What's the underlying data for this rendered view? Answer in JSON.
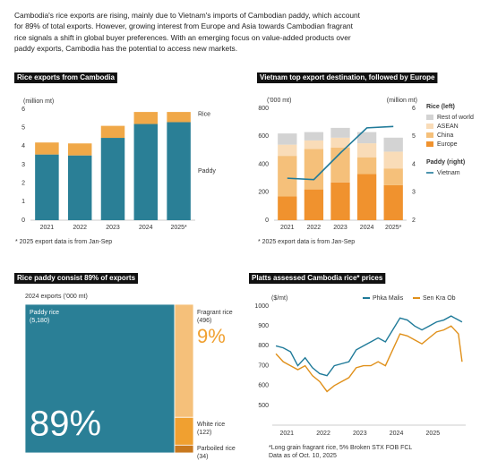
{
  "intro": "Cambodia's rice exports are rising, mainly due to Vietnam's imports of Cambodian paddy, which account for 89% of total exports. However, growing interest from Europe and Asia towards Cambodian fragrant rice signals a shift in global buyer preferences. With an emerging focus on value-added products over paddy exports, Cambodia has the potential to access new markets.",
  "chart_data": [
    {
      "type": "stacked_bar",
      "title": "Rice exports from Cambodia",
      "y_label": "(million mt)",
      "categories": [
        "2021",
        "2022",
        "2023",
        "2024",
        "2025*"
      ],
      "series": [
        {
          "name": "Paddy",
          "color": "#2a7f96",
          "values": [
            3.55,
            3.5,
            4.45,
            5.2,
            5.3
          ]
        },
        {
          "name": "Rice",
          "color": "#f0a848",
          "values": [
            0.65,
            0.65,
            0.65,
            0.65,
            0.55
          ]
        }
      ],
      "ylim": [
        0,
        6
      ],
      "yticks": [
        0,
        1,
        2,
        3,
        4,
        5,
        6
      ],
      "grid": false,
      "note": "* 2025 export data is from Jan-Sep"
    },
    {
      "type": "stacked_bar_line",
      "title": "Vietnam top export destination, followed by Europe",
      "y_label": "('000 mt)",
      "y2_label": "(million mt)",
      "categories": [
        "2021",
        "2022",
        "2023",
        "2024",
        "2025*"
      ],
      "legend_titles": [
        "Rice (left)",
        "Paddy (right)"
      ],
      "series": [
        {
          "name": "Europe",
          "color": "#f0922e",
          "values": [
            170,
            220,
            270,
            330,
            250
          ]
        },
        {
          "name": "China",
          "color": "#f5c07a",
          "values": [
            290,
            290,
            250,
            120,
            120
          ]
        },
        {
          "name": "ASEAN",
          "color": "#f9dcb8",
          "values": [
            80,
            60,
            70,
            100,
            120
          ]
        },
        {
          "name": "Rest of world",
          "color": "#d3d3d3",
          "values": [
            80,
            60,
            70,
            80,
            100
          ]
        },
        {
          "name": "Vietnam",
          "color": "#1f7a99",
          "axis": "y2",
          "values": [
            3.5,
            3.45,
            4.4,
            5.3,
            5.35
          ]
        }
      ],
      "ylim": [
        0,
        800
      ],
      "yticks": [
        0,
        200,
        400,
        600,
        800
      ],
      "y2lim": [
        2,
        6
      ],
      "y2ticks": [
        2,
        3,
        4,
        5,
        6
      ],
      "grid": false,
      "note": "* 2025 export data is from Jan-Sep"
    },
    {
      "type": "treemap",
      "title": "Rice paddy consist 89% of exports",
      "subtitle": "2024 exports ('000 mt)",
      "categories": [
        "Paddy rice",
        "Fragrant rice",
        "White rice",
        "Parboiled rice"
      ],
      "values": [
        5180,
        496,
        122,
        34
      ],
      "value_labels": [
        "(5,180)",
        "(496)",
        "(122)",
        "(34)"
      ],
      "colors": [
        "#2a7f96",
        "#f5c07a",
        "#f0a030",
        "#c8781e"
      ],
      "shares": [
        {
          "value": 89,
          "label": "89%"
        },
        {
          "value": 9,
          "label": "9%"
        }
      ]
    },
    {
      "type": "line",
      "title": "Platts assessed Cambodia rice* prices",
      "y_label": "($/mt)",
      "x": [
        2020.7,
        2020.9,
        2021.1,
        2021.3,
        2021.5,
        2021.7,
        2021.9,
        2022.1,
        2022.3,
        2022.5,
        2022.7,
        2022.9,
        2023.1,
        2023.3,
        2023.5,
        2023.7,
        2023.9,
        2024.1,
        2024.3,
        2024.5,
        2024.7,
        2024.9,
        2025.1,
        2025.3,
        2025.5,
        2025.7,
        2025.8
      ],
      "series": [
        {
          "name": "Phka Malis",
          "color": "#1f7a99",
          "values": [
            800,
            790,
            770,
            700,
            740,
            690,
            660,
            650,
            700,
            710,
            720,
            780,
            800,
            820,
            840,
            820,
            880,
            940,
            930,
            900,
            880,
            900,
            920,
            930,
            950,
            930,
            920
          ]
        },
        {
          "name": "Sen Kra Ob",
          "color": "#e0901a",
          "values": [
            760,
            720,
            700,
            680,
            700,
            650,
            620,
            570,
            600,
            620,
            640,
            690,
            700,
            700,
            720,
            700,
            780,
            860,
            850,
            830,
            810,
            840,
            870,
            880,
            900,
            860,
            720
          ]
        }
      ],
      "xlim": [
        2020.6,
        2025.9
      ],
      "xticks": [
        2021,
        2022,
        2023,
        2024,
        2025
      ],
      "ylim": [
        500,
        1000
      ],
      "yticks": [
        500,
        600,
        700,
        800,
        900,
        1000
      ],
      "grid": false,
      "notes": [
        "*Long grain fragrant rice, 5% Broken STX FOB FCL",
        "Data as of Oct. 10, 2025"
      ]
    }
  ]
}
